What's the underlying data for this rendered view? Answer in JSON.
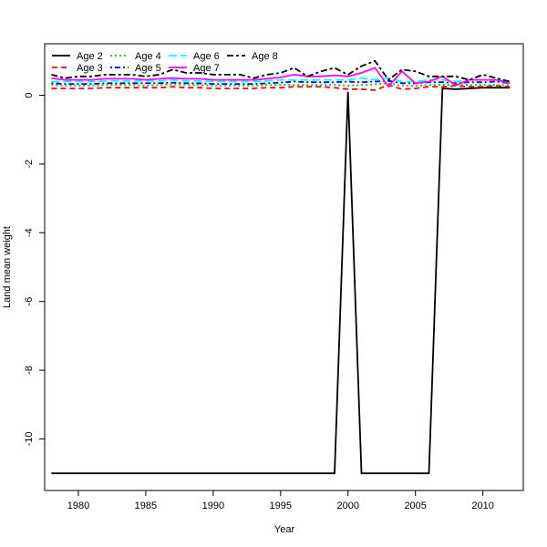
{
  "chart_data": {
    "type": "line",
    "title": "",
    "xlabel": "Year",
    "ylabel": "Land mean weight",
    "xlim": [
      1977.5,
      2013
    ],
    "ylim": [
      -11.5,
      1.5
    ],
    "x_ticks": [
      1980,
      1985,
      1990,
      1995,
      2000,
      2005,
      2010
    ],
    "y_ticks": [
      0,
      -2,
      -4,
      -6,
      -8,
      -10
    ],
    "grid": false,
    "legend_position": "top-left",
    "x": [
      1978,
      1979,
      1980,
      1981,
      1982,
      1983,
      1984,
      1985,
      1986,
      1987,
      1988,
      1989,
      1990,
      1991,
      1992,
      1993,
      1994,
      1995,
      1996,
      1997,
      1998,
      1999,
      2000,
      2001,
      2002,
      2003,
      2004,
      2005,
      2006,
      2007,
      2008,
      2009,
      2010,
      2011,
      2012
    ],
    "series": [
      {
        "name": "Age 2",
        "color": "#000000",
        "dash": "solid",
        "values": [
          -11,
          -11,
          -11,
          -11,
          -11,
          -11,
          -11,
          -11,
          -11,
          -11,
          -11,
          -11,
          -11,
          -11,
          -11,
          -11,
          -11,
          -11,
          -11,
          -11,
          -11,
          -11,
          0.1,
          -11,
          -11,
          -11,
          -11,
          -11,
          -11,
          0.2,
          0.18,
          0.2,
          0.22,
          0.22,
          0.22
        ]
      },
      {
        "name": "Age 3",
        "color": "#ff0000",
        "dash": "dashed",
        "values": [
          0.2,
          0.2,
          0.2,
          0.2,
          0.22,
          0.22,
          0.22,
          0.22,
          0.22,
          0.25,
          0.22,
          0.22,
          0.2,
          0.2,
          0.2,
          0.2,
          0.22,
          0.22,
          0.25,
          0.25,
          0.25,
          0.22,
          0.18,
          0.18,
          0.15,
          0.3,
          0.18,
          0.2,
          0.25,
          0.25,
          0.28,
          0.25,
          0.25,
          0.28,
          0.25
        ]
      },
      {
        "name": "Age 4",
        "color": "#00cd00",
        "dash": "dotted",
        "values": [
          0.3,
          0.28,
          0.28,
          0.28,
          0.3,
          0.3,
          0.3,
          0.28,
          0.3,
          0.32,
          0.3,
          0.3,
          0.28,
          0.28,
          0.28,
          0.28,
          0.3,
          0.3,
          0.3,
          0.3,
          0.3,
          0.3,
          0.28,
          0.3,
          0.32,
          0.35,
          0.28,
          0.28,
          0.3,
          0.3,
          0.3,
          0.3,
          0.3,
          0.3,
          0.3
        ]
      },
      {
        "name": "Age 5",
        "color": "#0000ff",
        "dash": "dashdot",
        "values": [
          0.35,
          0.33,
          0.33,
          0.33,
          0.35,
          0.35,
          0.35,
          0.35,
          0.35,
          0.37,
          0.35,
          0.35,
          0.33,
          0.33,
          0.33,
          0.33,
          0.35,
          0.37,
          0.4,
          0.38,
          0.38,
          0.38,
          0.4,
          0.38,
          0.4,
          0.42,
          0.35,
          0.35,
          0.38,
          0.38,
          0.35,
          0.38,
          0.38,
          0.4,
          0.35
        ]
      },
      {
        "name": "Age 6",
        "color": "#00ffff",
        "dash": "longdash",
        "values": [
          0.4,
          0.4,
          0.4,
          0.4,
          0.42,
          0.42,
          0.42,
          0.42,
          0.42,
          0.45,
          0.42,
          0.42,
          0.4,
          0.4,
          0.4,
          0.4,
          0.42,
          0.45,
          0.45,
          0.45,
          0.45,
          0.45,
          0.45,
          0.5,
          0.45,
          0.5,
          0.4,
          0.4,
          0.45,
          0.45,
          0.4,
          0.45,
          0.45,
          0.45,
          0.4
        ]
      },
      {
        "name": "Age 7",
        "color": "#ff00ff",
        "dash": "solid",
        "values": [
          0.5,
          0.45,
          0.45,
          0.45,
          0.48,
          0.48,
          0.48,
          0.45,
          0.48,
          0.5,
          0.48,
          0.48,
          0.45,
          0.45,
          0.45,
          0.45,
          0.48,
          0.52,
          0.6,
          0.55,
          0.55,
          0.58,
          0.55,
          0.65,
          0.8,
          0.25,
          0.7,
          0.35,
          0.4,
          0.55,
          0.3,
          0.45,
          0.45,
          0.45,
          0.35
        ]
      },
      {
        "name": "Age 8",
        "color": "#000000",
        "dash": "twodash",
        "values": [
          0.6,
          0.5,
          0.55,
          0.55,
          0.6,
          0.6,
          0.6,
          0.55,
          0.6,
          0.75,
          0.65,
          0.65,
          0.6,
          0.6,
          0.6,
          0.5,
          0.6,
          0.65,
          0.8,
          0.55,
          0.7,
          0.8,
          0.6,
          0.85,
          1.0,
          0.45,
          0.75,
          0.7,
          0.55,
          0.55,
          0.55,
          0.45,
          0.6,
          0.5,
          0.4
        ]
      }
    ]
  }
}
